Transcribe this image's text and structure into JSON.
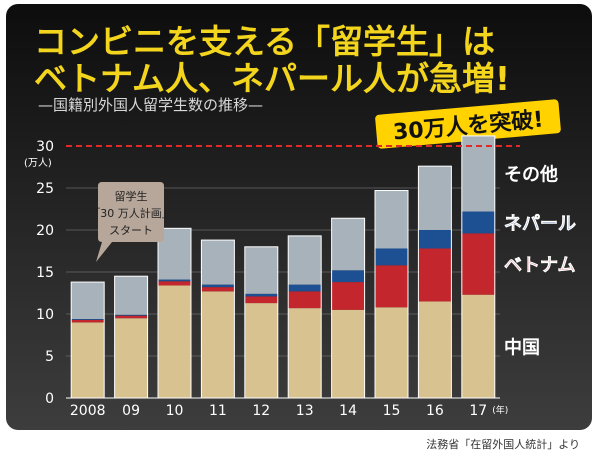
{
  "colors": {
    "panel_top": "#0d0d0d",
    "panel_bottom": "#3d3d3d",
    "title": "#f2d51c",
    "subtitle": "#d8d8d8",
    "china": "#d8c290",
    "vietnam": "#c4262d",
    "nepal": "#1d4f93",
    "other": "#a8b2ba",
    "badge": "#ffd200",
    "callout": "#b7a79a",
    "dashed_line": "#e02a2a"
  },
  "header": {
    "title_line1": "コンビニを支える「留学生」は",
    "title_line2": "ベトナム人、ネパール人が急増!",
    "subtitle": "—国籍別外国人留学生数の推移—"
  },
  "badge": {
    "text": "30万人を突破!"
  },
  "callout": {
    "line1": "留学生",
    "line2": "「30 万人計画」",
    "line3": "スタート"
  },
  "source": {
    "text": "法務省「在留外国人統計」より"
  },
  "chart_data": {
    "type": "bar",
    "stacked": true,
    "categories": [
      "2008",
      "09",
      "10",
      "11",
      "12",
      "13",
      "14",
      "15",
      "16",
      "17"
    ],
    "x_unit": "(年)",
    "y_unit": "(万人)",
    "ylim": [
      0,
      30
    ],
    "yticks": [
      0,
      5,
      10,
      15,
      20,
      25,
      30
    ],
    "reference_line": 30,
    "series": [
      {
        "name": "中国",
        "values": [
          9.0,
          9.5,
          13.4,
          12.7,
          11.3,
          10.7,
          10.5,
          10.8,
          11.5,
          12.3
        ]
      },
      {
        "name": "ベトナム",
        "values": [
          0.3,
          0.3,
          0.5,
          0.5,
          0.8,
          2.0,
          3.3,
          5.0,
          6.3,
          7.3
        ]
      },
      {
        "name": "ネパール",
        "values": [
          0.1,
          0.1,
          0.2,
          0.3,
          0.3,
          0.8,
          1.4,
          2.0,
          2.2,
          2.6
        ]
      },
      {
        "name": "その他",
        "values": [
          4.4,
          4.6,
          6.1,
          5.3,
          5.6,
          5.8,
          6.2,
          6.9,
          7.6,
          9.0
        ]
      }
    ],
    "legend_placement": "right"
  }
}
